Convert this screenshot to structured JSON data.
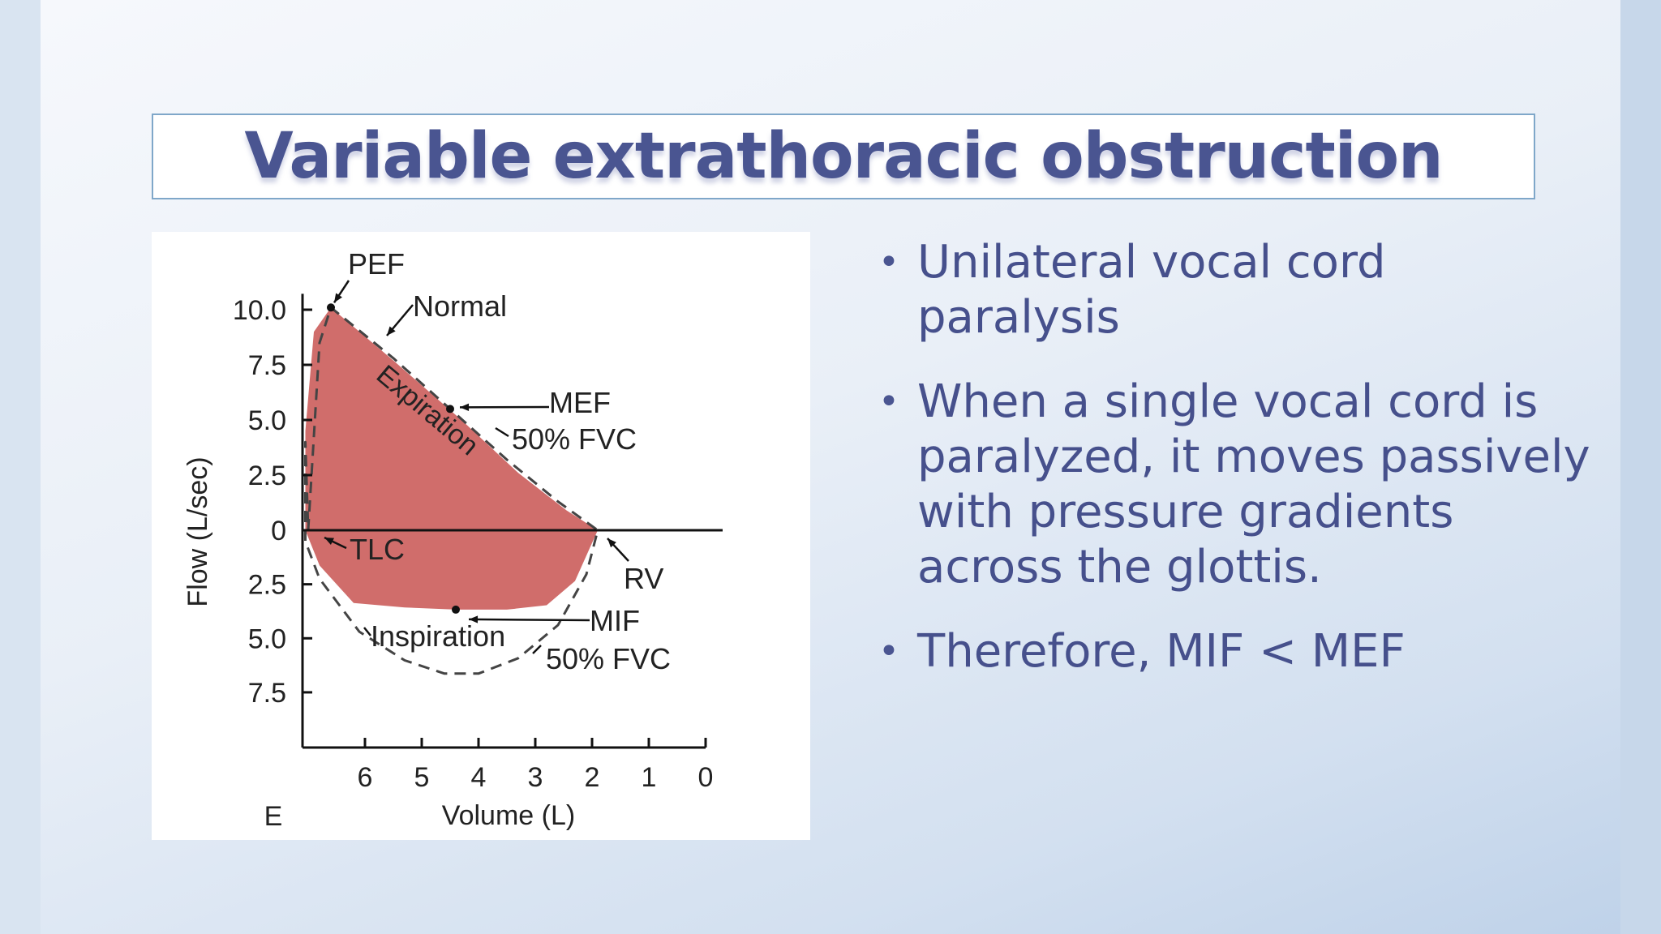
{
  "slide": {
    "title": "Variable extrathoracic obstruction",
    "bullets": [
      "Unilateral vocal cord paralysis",
      "When a single vocal cord is paralyzed, it moves passively with pressure gradients across the glottis.",
      "Therefore, MIF < MEF"
    ]
  },
  "chart_data": {
    "type": "area",
    "xlabel": "Volume (L)",
    "ylabel": "Flow (L/sec)",
    "x_ticks": [
      "6",
      "5",
      "4",
      "3",
      "2",
      "1",
      "0"
    ],
    "y_ticks_expiration": [
      "10.0",
      "7.5",
      "5.0",
      "2.5",
      "0"
    ],
    "y_ticks_inspiration": [
      "2.5",
      "5.0",
      "7.5"
    ],
    "x_axis_reversed": true,
    "xlim": [
      7.1,
      0
    ],
    "ylim": [
      -9,
      10.5
    ],
    "e_label": "E",
    "series": [
      {
        "name": "Normal",
        "style": "dashed",
        "x": [
          7.0,
          6.8,
          6.6,
          5.5,
          4.5,
          3.5,
          2.6,
          1.9,
          2.1,
          2.6,
          3.3,
          4.0,
          4.6,
          5.3,
          6.1,
          6.8,
          7.05,
          7.05,
          7.0
        ],
        "y": [
          0,
          8.5,
          10.1,
          7.8,
          5.5,
          3.2,
          1.3,
          0,
          -2.0,
          -4.3,
          -5.8,
          -6.5,
          -6.5,
          -5.9,
          -4.6,
          -2.2,
          -0.5,
          4.0,
          0
        ]
      },
      {
        "name": "Expiration",
        "style": "filled",
        "color": "#d06d6b",
        "x": [
          7.05,
          7.05,
          6.9,
          6.6,
          5.5,
          4.3,
          3.3,
          2.45,
          1.9
        ],
        "y": [
          0,
          4.5,
          9.0,
          10.1,
          7.7,
          5.0,
          2.6,
          0.9,
          0
        ]
      },
      {
        "name": "Inspiration",
        "style": "filled",
        "color": "#d06d6b",
        "x": [
          1.9,
          2.3,
          2.8,
          3.5,
          4.4,
          5.3,
          6.2,
          6.8,
          7.05
        ],
        "y": [
          0,
          -2.3,
          -3.4,
          -3.6,
          -3.6,
          -3.5,
          -3.3,
          -1.6,
          0
        ]
      }
    ],
    "annotations": [
      {
        "label": "PEF",
        "x": 6.6,
        "y": 10.1
      },
      {
        "label": "Normal"
      },
      {
        "label": "Expiration"
      },
      {
        "label": "MEF",
        "sublabel": "50% FVC",
        "x": 4.5,
        "y": 5.5
      },
      {
        "label": "TLC",
        "x": 7.05,
        "y": 0
      },
      {
        "label": "RV",
        "x": 1.9,
        "y": 0
      },
      {
        "label": "Inspiration"
      },
      {
        "label": "MIF",
        "sublabel": "50% FVC",
        "x": 4.4,
        "y": -3.6
      }
    ],
    "grid": false,
    "colors": {
      "fill": "#d06d6b",
      "line": "#222222",
      "dashed": "#444444"
    }
  }
}
